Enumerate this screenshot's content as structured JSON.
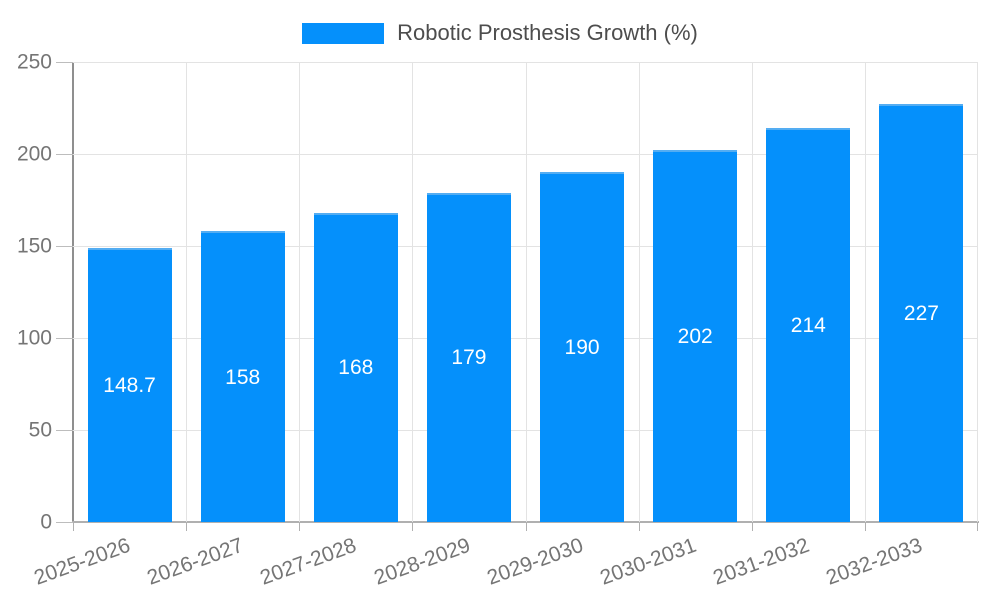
{
  "legend": {
    "label": "Robotic Prosthesis Growth (%)"
  },
  "chart_data": {
    "type": "bar",
    "title": "Robotic Prosthesis Growth (%)",
    "categories": [
      "2025-2026",
      "2026-2027",
      "2027-2028",
      "2028-2029",
      "2029-2030",
      "2030-2031",
      "2031-2032",
      "2032-2033"
    ],
    "values": [
      148.7,
      158,
      168,
      179,
      190,
      202,
      214,
      227
    ],
    "value_labels": [
      "148.7",
      "158",
      "168",
      "179",
      "190",
      "202",
      "214",
      "227"
    ],
    "xlabel": "",
    "ylabel": "",
    "ylim": [
      0,
      250
    ],
    "yticks": [
      0,
      50,
      100,
      150,
      200,
      250
    ],
    "grid": true,
    "legend_position": "top-center",
    "x_label_rotation_deg": -20,
    "colors": {
      "bar_fill": "#0590fb",
      "bar_border": "#54adf2",
      "value_label": "#ffffff",
      "axis_text": "#757575",
      "legend_text": "#4d4d4d",
      "grid_line": "#e3e3e3",
      "axis_line": "#8f8f8f"
    }
  }
}
